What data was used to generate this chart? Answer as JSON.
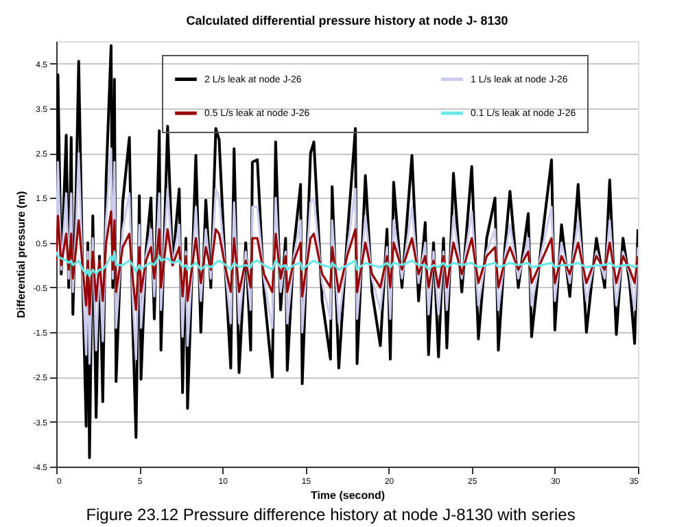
{
  "chart_data": {
    "type": "line",
    "title": "Calculated differential pressure history at node J- 8130",
    "xlabel": "Time (second)",
    "ylabel": "Differential pressure (m)",
    "x": [
      0,
      0.1,
      0.3,
      0.6,
      0.75,
      0.9,
      1.0,
      1.2,
      1.35,
      1.6,
      1.8,
      1.9,
      2.0,
      2.2,
      2.4,
      2.6,
      2.8,
      3.0,
      3.3,
      3.4,
      3.5,
      3.6,
      4.0,
      4.4,
      4.6,
      4.8,
      5.0,
      5.1,
      5.4,
      5.7,
      5.9,
      6.2,
      6.3,
      6.7,
      7.0,
      7.4,
      7.6,
      7.8,
      7.9,
      8.4,
      8.7,
      9.0,
      9.3,
      9.6,
      9.8,
      10.2,
      10.5,
      10.7,
      11.0,
      11.4,
      11.7,
      11.8,
      12.1,
      12.5,
      13.0,
      13.2,
      13.5,
      13.8,
      13.9,
      14.3,
      14.7,
      14.8,
      15.3,
      15.5,
      16.0,
      16.5,
      16.6,
      17.0,
      17.5,
      18.0,
      18.1,
      18.6,
      19.0,
      19.5,
      19.9,
      20.1,
      20.3,
      20.8,
      21.4,
      21.8,
      22.2,
      22.4,
      22.7,
      23.0,
      23.3,
      23.5,
      23.9,
      24.4,
      25.0,
      25.4,
      25.9,
      26.4,
      26.6,
      27.0,
      27.3,
      27.8,
      28.4,
      28.6,
      29.2,
      29.8,
      30.0,
      30.4,
      30.9,
      31.4,
      31.9,
      32.5,
      33.0,
      33.3,
      33.7,
      34.1,
      34.5,
      34.8,
      35.0
    ],
    "series": [
      {
        "name": "2 L/s leak at node J-26",
        "color": "#000000",
        "values": [
          0.1,
          4.25,
          -0.2,
          2.9,
          -0.5,
          2.85,
          -1.1,
          1.7,
          4.55,
          -0.5,
          -3.6,
          0.5,
          -4.3,
          1.1,
          -3.4,
          0.2,
          -3.05,
          1.9,
          4.9,
          -0.5,
          4.15,
          -2.6,
          1.4,
          2.85,
          -1.3,
          -3.85,
          1.55,
          -2.55,
          0.3,
          1.5,
          -1.2,
          3.0,
          -1.9,
          3.1,
          0.0,
          1.7,
          -2.85,
          0.6,
          -3.2,
          2.45,
          -1.5,
          1.45,
          -0.5,
          3.05,
          2.8,
          -0.3,
          -2.3,
          2.6,
          -2.4,
          0.5,
          -1.9,
          2.3,
          2.35,
          -0.6,
          -2.5,
          2.75,
          -1.0,
          0.6,
          -2.35,
          0.4,
          1.8,
          -2.65,
          2.5,
          2.75,
          -0.8,
          -2.1,
          1.75,
          -2.3,
          0.6,
          3.05,
          -2.2,
          2.0,
          -0.6,
          -1.8,
          0.8,
          -2.1,
          1.85,
          -0.5,
          2.45,
          -0.8,
          0.95,
          -2.0,
          0.5,
          -2.05,
          0.6,
          -1.85,
          2.05,
          -0.6,
          2.2,
          -1.65,
          0.6,
          1.5,
          -1.9,
          0.4,
          1.65,
          -0.5,
          1.15,
          -1.6,
          0.5,
          2.35,
          -1.45,
          0.9,
          -0.7,
          1.8,
          -1.5,
          0.6,
          -0.5,
          1.9,
          -1.55,
          0.6,
          -0.4,
          -1.75,
          0.8
        ]
      },
      {
        "name": "1 L/s leak at node J-26",
        "color": "#ccccee",
        "values": [
          0.1,
          2.3,
          -0.1,
          1.6,
          -0.3,
          1.6,
          -0.6,
          0.9,
          2.5,
          -0.3,
          -2.0,
          0.3,
          -2.2,
          0.6,
          -1.9,
          0.1,
          -1.7,
          1.0,
          2.6,
          -0.3,
          2.3,
          -1.4,
          0.8,
          1.6,
          -0.7,
          -2.1,
          0.9,
          -1.4,
          0.2,
          0.8,
          -0.7,
          1.6,
          -1.0,
          1.7,
          0.0,
          0.9,
          -1.6,
          0.3,
          -1.8,
          1.3,
          -0.8,
          0.8,
          -0.3,
          1.7,
          1.5,
          -0.2,
          -1.3,
          1.4,
          -1.3,
          0.3,
          -1.0,
          1.3,
          1.3,
          -0.3,
          -1.4,
          1.5,
          -0.6,
          0.3,
          -1.3,
          0.2,
          1.0,
          -1.5,
          1.4,
          1.5,
          -0.4,
          -1.2,
          1.0,
          -1.3,
          0.3,
          1.7,
          -1.2,
          1.1,
          -0.3,
          -1.0,
          0.4,
          -1.2,
          1.0,
          -0.3,
          1.3,
          -0.4,
          0.5,
          -1.1,
          0.3,
          -1.1,
          0.3,
          -1.0,
          1.1,
          -0.3,
          1.2,
          -0.9,
          0.3,
          0.8,
          -1.0,
          0.2,
          0.9,
          -0.3,
          0.6,
          -0.9,
          0.3,
          1.3,
          -0.8,
          0.5,
          -0.4,
          1.0,
          -0.8,
          0.3,
          -0.3,
          1.0,
          -0.9,
          0.3,
          -0.2,
          -1.0,
          0.4
        ]
      },
      {
        "name": "0.5 L/s leak at node J-26",
        "color": "#990000",
        "values": [
          0.1,
          1.1,
          0.0,
          0.7,
          -0.1,
          0.7,
          -0.3,
          0.4,
          1.0,
          -0.1,
          -0.9,
          0.1,
          -1.1,
          0.3,
          -0.8,
          0.1,
          -0.8,
          0.5,
          1.2,
          -0.1,
          1.0,
          -0.6,
          0.4,
          0.7,
          -0.3,
          -1.0,
          0.4,
          -0.6,
          0.1,
          0.4,
          -0.3,
          0.8,
          -0.5,
          0.8,
          0.0,
          0.4,
          -0.7,
          0.2,
          -0.8,
          0.6,
          -0.4,
          0.4,
          -0.1,
          0.8,
          0.7,
          -0.1,
          -0.6,
          0.6,
          -0.6,
          0.1,
          -0.5,
          0.6,
          0.6,
          -0.2,
          -0.6,
          0.7,
          -0.3,
          0.2,
          -0.6,
          0.1,
          0.5,
          -0.7,
          0.6,
          0.7,
          -0.2,
          -0.5,
          0.4,
          -0.6,
          0.2,
          0.8,
          -0.6,
          0.5,
          -0.2,
          -0.5,
          0.2,
          -0.5,
          0.5,
          -0.1,
          0.6,
          -0.2,
          0.2,
          -0.5,
          0.1,
          -0.5,
          0.2,
          -0.5,
          0.5,
          -0.2,
          0.6,
          -0.4,
          0.2,
          0.4,
          -0.5,
          0.1,
          0.4,
          -0.1,
          0.3,
          -0.4,
          0.1,
          0.6,
          -0.4,
          0.2,
          -0.2,
          0.5,
          -0.4,
          0.2,
          -0.1,
          0.5,
          -0.4,
          0.2,
          -0.1,
          -0.4,
          0.2
        ]
      },
      {
        "name": "0.1 L/s leak at node J-26",
        "color": "#66e8e8",
        "values": [
          0.3,
          0.2,
          0.15,
          0.1,
          0.05,
          0.1,
          0.0,
          0.05,
          0.1,
          -0.1,
          -0.2,
          -0.1,
          -0.25,
          -0.1,
          -0.2,
          -0.1,
          -0.1,
          0.0,
          0.2,
          0.1,
          0.3,
          0.0,
          0.0,
          0.1,
          0.0,
          -0.15,
          0.0,
          -0.1,
          0.0,
          0.05,
          0.0,
          0.2,
          0.1,
          0.15,
          0.05,
          0.1,
          -0.05,
          0.0,
          -0.1,
          0.05,
          -0.1,
          0.0,
          -0.05,
          0.05,
          0.1,
          0.0,
          -0.1,
          0.05,
          -0.05,
          0.0,
          -0.05,
          0.05,
          0.1,
          0.0,
          -0.1,
          0.1,
          -0.05,
          0.0,
          -0.1,
          0.0,
          0.05,
          -0.1,
          0.05,
          0.1,
          0.0,
          -0.05,
          0.05,
          -0.1,
          0.0,
          0.1,
          -0.1,
          0.05,
          0.0,
          -0.05,
          0.05,
          -0.05,
          0.05,
          0.0,
          0.1,
          0.0,
          0.0,
          -0.1,
          0.0,
          -0.05,
          0.05,
          -0.05,
          0.05,
          0.0,
          0.05,
          -0.05,
          0.0,
          0.05,
          -0.05,
          0.0,
          0.05,
          0.0,
          0.05,
          -0.05,
          0.0,
          0.05,
          -0.05,
          0.0,
          0.0,
          0.05,
          -0.05,
          0.0,
          0.0,
          0.05,
          -0.05,
          0.0,
          0.0,
          -0.05,
          0.0
        ]
      }
    ],
    "xlim": [
      0,
      35
    ],
    "xticks": [
      0,
      5,
      10,
      15,
      20,
      25,
      30,
      35
    ],
    "ylim": [
      -4.5,
      5
    ],
    "yticks": [
      -4.5,
      -3.5,
      -2.5,
      -1.5,
      -0.5,
      0.5,
      1.5,
      2.5,
      3.5,
      4.5
    ],
    "grid": "y",
    "legend": "top",
    "marker": "none",
    "line_style": "solid",
    "annotations": [
      "Figure 23.12  Pressure difference history at node J-8130 with series"
    ]
  }
}
